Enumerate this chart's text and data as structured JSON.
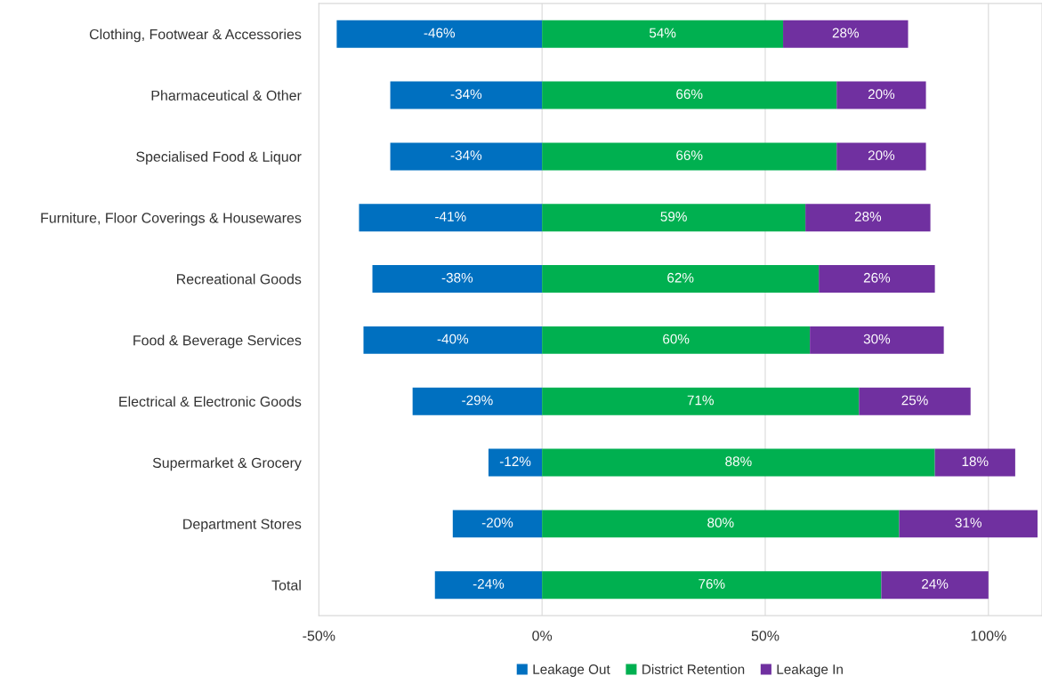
{
  "chart_data": {
    "type": "bar",
    "orientation": "horizontal",
    "stacked": true,
    "categories": [
      "Clothing, Footwear & Accessories",
      "Pharmaceutical & Other",
      "Specialised Food & Liquor",
      "Furniture, Floor Coverings & Housewares",
      "Recreational Goods",
      "Food & Beverage Services",
      "Electrical & Electronic Goods",
      "Supermarket & Grocery",
      "Department Stores",
      "Total"
    ],
    "series": [
      {
        "name": "Leakage Out",
        "color": "#0070c0",
        "values": [
          -46,
          -34,
          -34,
          -41,
          -38,
          -40,
          -29,
          -12,
          -20,
          -24
        ],
        "value_labels": [
          "-46%",
          "-34%",
          "-34%",
          "-41%",
          "-38%",
          "-40%",
          "-29%",
          "-12%",
          "-20%",
          "-24%"
        ]
      },
      {
        "name": "District Retention",
        "color": "#00b050",
        "values": [
          54,
          66,
          66,
          59,
          62,
          60,
          71,
          88,
          80,
          76
        ],
        "value_labels": [
          "54%",
          "66%",
          "66%",
          "59%",
          "62%",
          "60%",
          "71%",
          "88%",
          "80%",
          "76%"
        ]
      },
      {
        "name": "Leakage In",
        "color": "#7030a0",
        "values": [
          28,
          20,
          20,
          28,
          26,
          30,
          25,
          18,
          31,
          24
        ],
        "value_labels": [
          "28%",
          "20%",
          "20%",
          "28%",
          "26%",
          "30%",
          "25%",
          "18%",
          "31%",
          "24%"
        ]
      }
    ],
    "xlim": [
      -50,
      112
    ],
    "xticks": [
      {
        "value": -50,
        "label": "-50%"
      },
      {
        "value": 0,
        "label": "0%"
      },
      {
        "value": 50,
        "label": "50%"
      },
      {
        "value": 100,
        "label": "100%"
      }
    ],
    "grid": "x",
    "legend": "bottom"
  }
}
